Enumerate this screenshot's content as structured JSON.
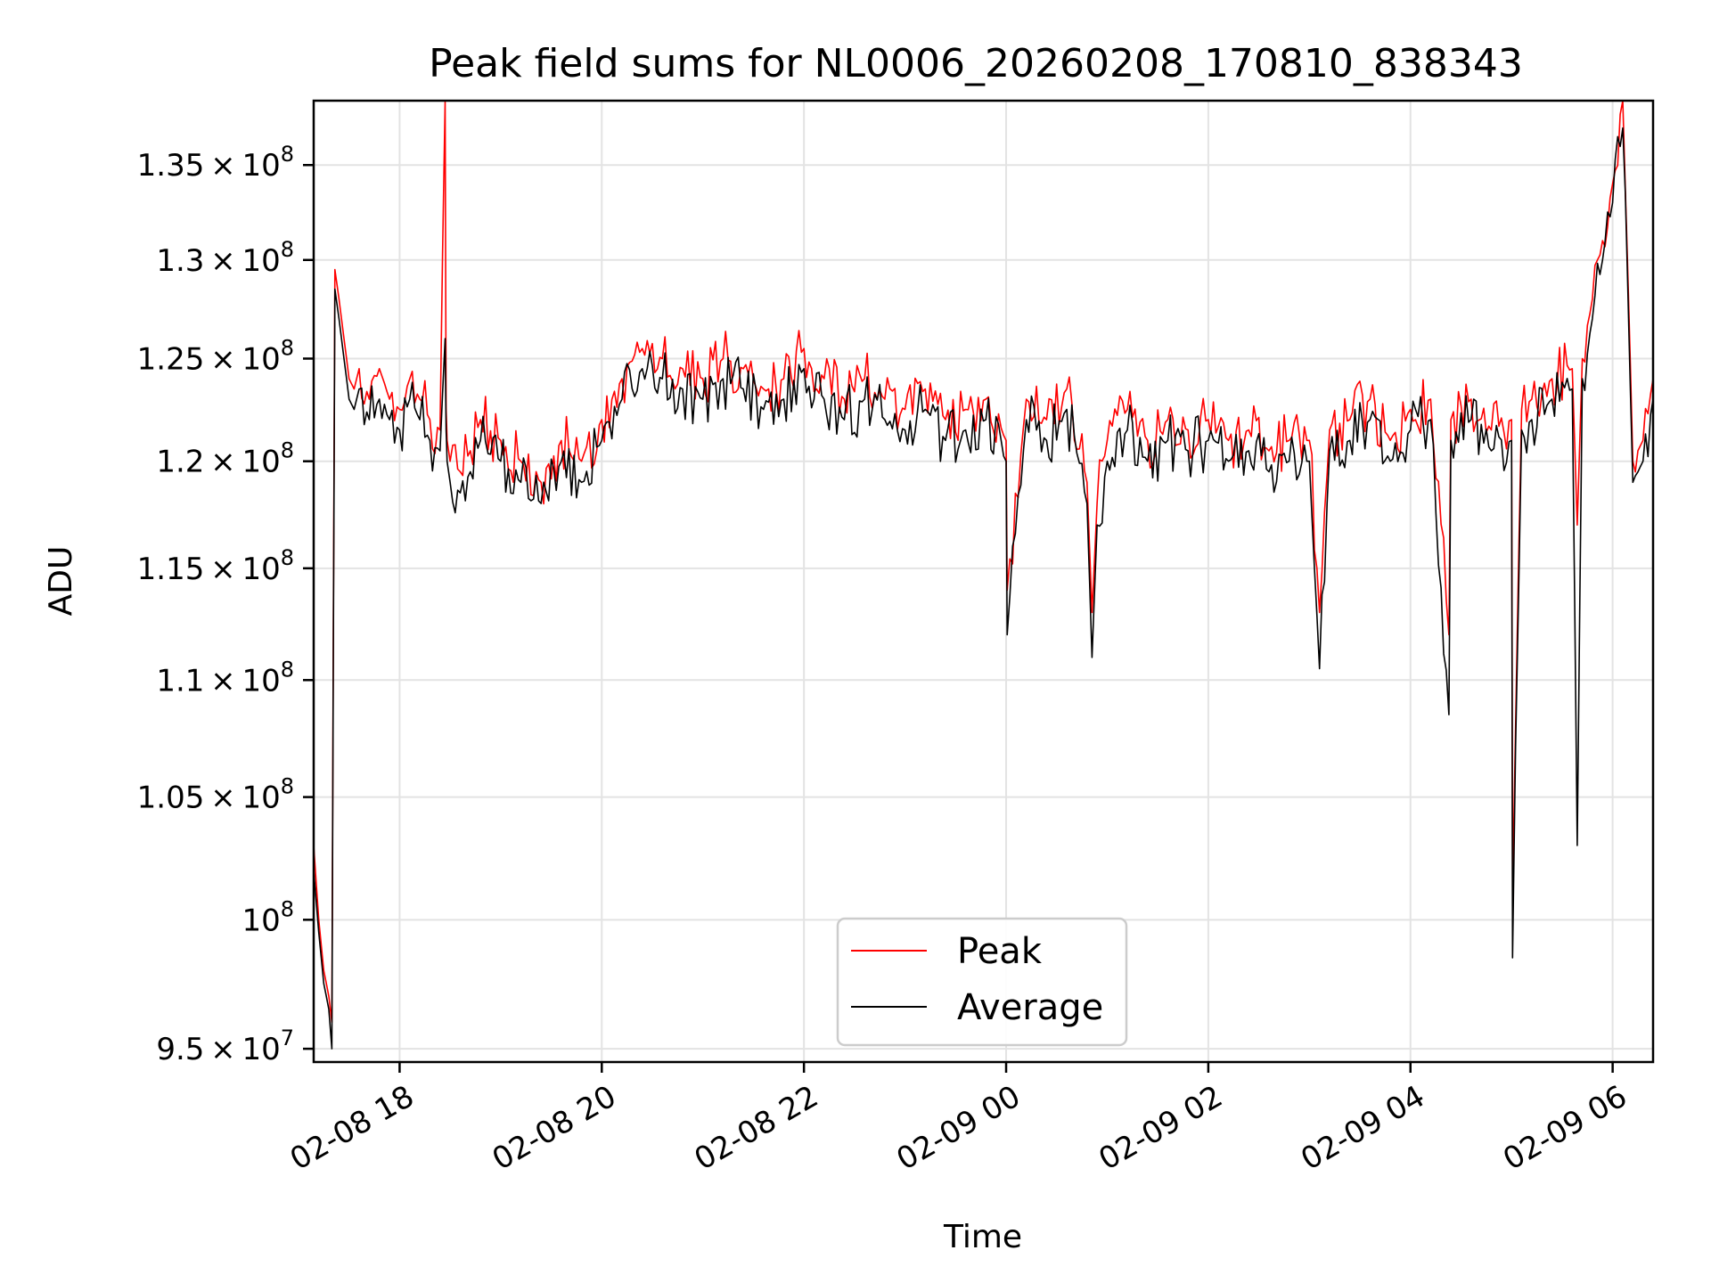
{
  "chart_data": {
    "type": "line",
    "title": "Peak field sums for NL0006_20260208_170810_838343",
    "xlabel": "Time",
    "ylabel": "ADU",
    "yscale": "log",
    "grid": true,
    "legend_position": "lower-center",
    "xlim": [
      17.15,
      30.4
    ],
    "ylim": [
      94500000,
      138500000
    ],
    "x_ticks": [
      {
        "value": 18,
        "label": "02-08 18"
      },
      {
        "value": 20,
        "label": "02-08 20"
      },
      {
        "value": 22,
        "label": "02-08 22"
      },
      {
        "value": 24,
        "label": "02-09 00"
      },
      {
        "value": 26,
        "label": "02-09 02"
      },
      {
        "value": 28,
        "label": "02-09 04"
      },
      {
        "value": 30,
        "label": "02-09 06"
      }
    ],
    "y_ticks": [
      {
        "value": 95000000,
        "mantissa": "9.5",
        "exp": "7"
      },
      {
        "value": 100000000,
        "mantissa": "",
        "exp": "8"
      },
      {
        "value": 105000000,
        "mantissa": "1.05",
        "exp": "8"
      },
      {
        "value": 110000000,
        "mantissa": "1.1",
        "exp": "8"
      },
      {
        "value": 115000000,
        "mantissa": "1.15",
        "exp": "8"
      },
      {
        "value": 120000000,
        "mantissa": "1.2",
        "exp": "8"
      },
      {
        "value": 125000000,
        "mantissa": "1.25",
        "exp": "8"
      },
      {
        "value": 130000000,
        "mantissa": "1.3",
        "exp": "8"
      },
      {
        "value": 135000000,
        "mantissa": "1.35",
        "exp": "8"
      }
    ],
    "series": [
      {
        "name": "Peak",
        "color": "#ff0000",
        "x": [
          17.15,
          17.2,
          17.25,
          17.3,
          17.33,
          17.36,
          17.4,
          17.45,
          17.5,
          17.55,
          17.6,
          17.7,
          17.8,
          17.9,
          18.0,
          18.1,
          18.2,
          18.3,
          18.4,
          18.45,
          18.46,
          18.47,
          18.5,
          18.6,
          18.7,
          18.8,
          19.0,
          19.2,
          19.4,
          19.6,
          19.8,
          20.0,
          20.2,
          20.4,
          20.6,
          20.8,
          21.0,
          21.2,
          21.4,
          21.6,
          21.8,
          22.0,
          22.2,
          22.4,
          22.6,
          22.8,
          23.0,
          23.2,
          23.4,
          23.6,
          23.8,
          24.0,
          24.01,
          24.2,
          24.4,
          24.6,
          24.8,
          24.85,
          24.9,
          25.0,
          25.2,
          25.4,
          25.6,
          25.8,
          26.0,
          26.2,
          26.4,
          26.6,
          26.8,
          27.0,
          27.1,
          27.2,
          27.4,
          27.6,
          27.8,
          28.0,
          28.2,
          28.38,
          28.4,
          28.6,
          28.8,
          29.0,
          29.01,
          29.1,
          29.2,
          29.4,
          29.6,
          29.65,
          29.7,
          29.8,
          29.9,
          30.0,
          30.1,
          30.2,
          30.3,
          30.4
        ],
        "values": [
          103000000,
          100000000,
          98000000,
          97000000,
          96000000,
          129500000,
          128000000,
          126000000,
          124000000,
          123500000,
          124500000,
          123000000,
          124500000,
          123000000,
          122500000,
          124000000,
          123000000,
          122000000,
          121500000,
          139000000,
          122500000,
          121000000,
          120000000,
          119500000,
          120500000,
          122000000,
          121000000,
          120000000,
          119000000,
          121000000,
          120000000,
          122000000,
          124000000,
          125500000,
          125000000,
          124500000,
          124000000,
          125000000,
          124500000,
          123500000,
          124000000,
          125500000,
          124000000,
          123000000,
          124000000,
          123000000,
          122500000,
          123500000,
          122000000,
          122500000,
          123000000,
          121000000,
          114000000,
          123000000,
          122000000,
          123500000,
          119000000,
          113000000,
          118000000,
          121000000,
          122500000,
          121000000,
          122000000,
          121500000,
          122000000,
          121000000,
          121500000,
          120500000,
          121000000,
          121000000,
          113000000,
          121500000,
          122000000,
          123000000,
          121000000,
          122500000,
          123000000,
          112000000,
          122000000,
          123000000,
          121500000,
          122000000,
          101000000,
          122500000,
          123000000,
          124000000,
          124500000,
          117000000,
          125000000,
          128000000,
          131000000,
          134000000,
          139000000,
          120000000,
          121000000,
          124000000
        ]
      },
      {
        "name": "Average",
        "color": "#000000",
        "x": [
          17.15,
          17.2,
          17.25,
          17.3,
          17.33,
          17.36,
          17.4,
          17.45,
          17.5,
          17.55,
          17.6,
          17.7,
          17.8,
          17.9,
          18.0,
          18.1,
          18.2,
          18.3,
          18.4,
          18.45,
          18.46,
          18.47,
          18.5,
          18.6,
          18.7,
          18.8,
          19.0,
          19.2,
          19.4,
          19.6,
          19.8,
          20.0,
          20.2,
          20.4,
          20.6,
          20.8,
          21.0,
          21.2,
          21.4,
          21.6,
          21.8,
          22.0,
          22.2,
          22.4,
          22.6,
          22.8,
          23.0,
          23.2,
          23.4,
          23.6,
          23.8,
          24.0,
          24.01,
          24.2,
          24.4,
          24.6,
          24.8,
          24.85,
          24.9,
          25.0,
          25.2,
          25.4,
          25.6,
          25.8,
          26.0,
          26.2,
          26.4,
          26.6,
          26.8,
          27.0,
          27.1,
          27.2,
          27.4,
          27.6,
          27.8,
          28.0,
          28.2,
          28.38,
          28.4,
          28.6,
          28.8,
          29.0,
          29.01,
          29.1,
          29.2,
          29.4,
          29.6,
          29.65,
          29.7,
          29.8,
          29.9,
          30.0,
          30.1,
          30.2,
          30.3,
          30.4
        ],
        "values": [
          102000000,
          99500000,
          97500000,
          96500000,
          95000000,
          128500000,
          127000000,
          125000000,
          123000000,
          122500000,
          123500000,
          122000000,
          123000000,
          122000000,
          121500000,
          123000000,
          122000000,
          121000000,
          120500000,
          126000000,
          121500000,
          120000000,
          119000000,
          118500000,
          119500000,
          121000000,
          120000000,
          119000000,
          118000000,
          120000000,
          119000000,
          121000000,
          123000000,
          124500000,
          124000000,
          123500000,
          123000000,
          124000000,
          123500000,
          122500000,
          123000000,
          124500000,
          123000000,
          122000000,
          123000000,
          122000000,
          121500000,
          122500000,
          121000000,
          121500000,
          122000000,
          120000000,
          112000000,
          122000000,
          121000000,
          122500000,
          118000000,
          111000000,
          117000000,
          120000000,
          121500000,
          120000000,
          121000000,
          120500000,
          121000000,
          120000000,
          120500000,
          119500000,
          120000000,
          120000000,
          110500000,
          120500000,
          121000000,
          122000000,
          120000000,
          121500000,
          122000000,
          108500000,
          121000000,
          122000000,
          120500000,
          121000000,
          98500000,
          121500000,
          122000000,
          123000000,
          123500000,
          103000000,
          124000000,
          127000000,
          130000000,
          133000000,
          137000000,
          119000000,
          120000000,
          123000000
        ]
      }
    ]
  }
}
